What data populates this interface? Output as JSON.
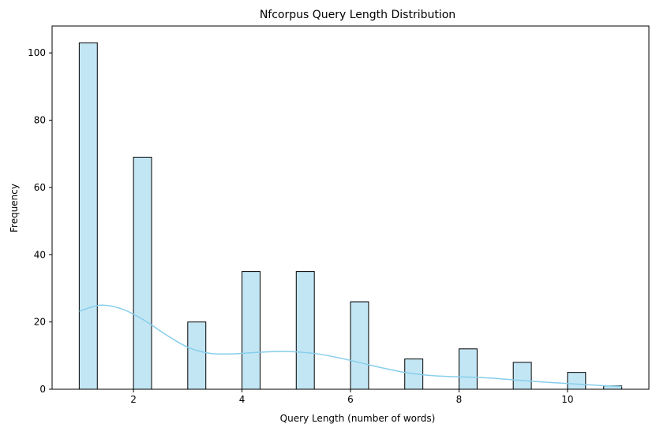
{
  "chart_data": {
    "type": "bar",
    "title": "Nfcorpus Query Length Distribution",
    "xlabel": "Query Length (number of words)",
    "ylabel": "Frequency",
    "xlim": [
      0.5,
      11.5
    ],
    "ylim": [
      0,
      108
    ],
    "x_ticks": [
      2,
      4,
      6,
      8,
      10
    ],
    "y_ticks": [
      0,
      20,
      40,
      60,
      80,
      100
    ],
    "bin_edges": [
      1,
      11
    ],
    "bin_count": 30,
    "bars": [
      {
        "x": 1,
        "value": 103
      },
      {
        "x": 2,
        "value": 69
      },
      {
        "x": 3,
        "value": 20
      },
      {
        "x": 4,
        "value": 35
      },
      {
        "x": 5,
        "value": 35
      },
      {
        "x": 6,
        "value": 26
      },
      {
        "x": 7,
        "value": 9
      },
      {
        "x": 8,
        "value": 12
      },
      {
        "x": 9,
        "value": 8
      },
      {
        "x": 10,
        "value": 5
      },
      {
        "x": 11,
        "value": 1
      }
    ],
    "kde": {
      "x": [
        1.0,
        1.4,
        1.8,
        2.2,
        2.6,
        3.0,
        3.4,
        3.8,
        4.2,
        4.6,
        5.0,
        5.4,
        5.8,
        6.2,
        6.6,
        7.0,
        7.4,
        7.8,
        8.2,
        8.6,
        9.0,
        9.4,
        9.8,
        10.2,
        10.6,
        11.0
      ],
      "y": [
        23.2,
        25.0,
        23.8,
        20.5,
        16.2,
        12.5,
        10.7,
        10.5,
        10.9,
        11.2,
        11.1,
        10.5,
        9.3,
        7.8,
        6.3,
        5.0,
        4.2,
        3.8,
        3.6,
        3.3,
        2.8,
        2.3,
        1.9,
        1.5,
        1.1,
        0.8
      ]
    },
    "colors": {
      "bar_fill": "#87ceeb",
      "bar_fill_opacity": 0.5,
      "bar_edge": "#000000",
      "kde_line": "#87ceeb"
    },
    "grid": false,
    "legend": "none"
  }
}
